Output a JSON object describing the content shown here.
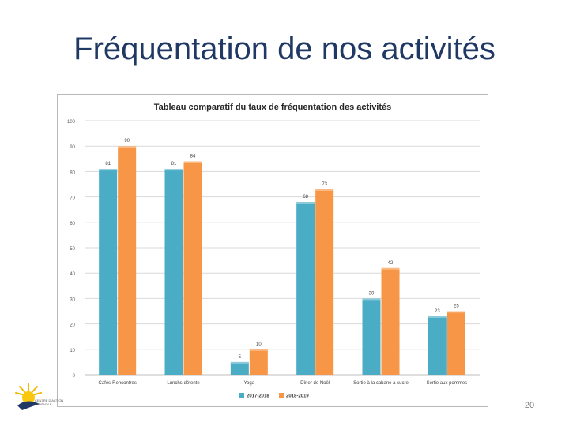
{
  "slide": {
    "title": "Fréquentation de nos activités",
    "page_number": "20",
    "logo_text": [
      "CENTRE D'ACTION",
      "BÉNÉVOLE"
    ]
  },
  "colors": {
    "title": "#1F3864",
    "series_2017": "#4BACC6",
    "series_2018": "#F79646",
    "grid": "#D9D9D9"
  },
  "chart_data": {
    "type": "bar",
    "title": "Tableau comparatif du taux de fréquentation des activités",
    "categories": [
      "Cafés-Rencontres",
      "Lunchs-détente",
      "Yoga",
      "Dîner de Noël",
      "Sortie à la cabane à sucre",
      "Sortie aux pommes"
    ],
    "series": [
      {
        "name": "2017-2018",
        "values": [
          81,
          81,
          5,
          68,
          30,
          23
        ]
      },
      {
        "name": "2018-2019",
        "values": [
          90,
          84,
          10,
          73,
          42,
          25
        ]
      }
    ],
    "ylim": [
      0,
      100
    ],
    "yticks": [
      0,
      10,
      20,
      30,
      40,
      50,
      60,
      70,
      80,
      90,
      100
    ],
    "xlabel": "",
    "ylabel": "",
    "grid": true,
    "legend": "bottom"
  }
}
